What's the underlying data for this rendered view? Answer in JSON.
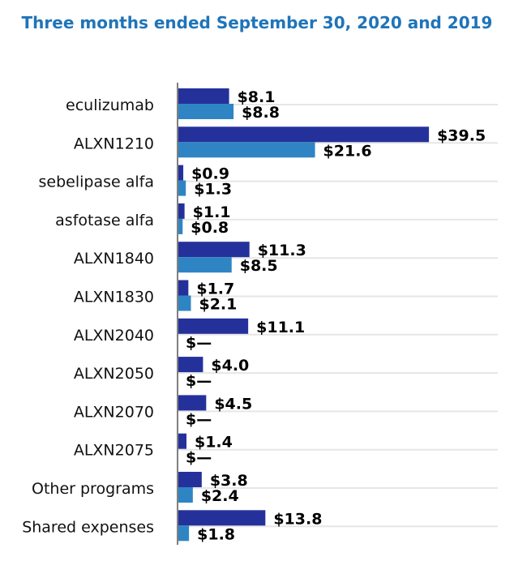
{
  "chart_data": {
    "type": "bar",
    "orientation": "horizontal",
    "title": "Three months ended September 30, 2020 and 2019",
    "xlabel": "",
    "ylabel": "",
    "xlim": [
      0,
      40
    ],
    "grid": true,
    "categories": [
      "eculizumab",
      "ALXN1210",
      "sebelipase alfa",
      "asfotase alfa",
      "ALXN1840",
      "ALXN1830",
      "ALXN2040",
      "ALXN2050",
      "ALXN2070",
      "ALXN2075",
      "Other programs",
      "Shared expenses"
    ],
    "series": [
      {
        "name": "2020",
        "color": "#25319b",
        "values": [
          8.1,
          39.5,
          0.9,
          1.1,
          11.3,
          1.7,
          11.1,
          4.0,
          4.5,
          1.4,
          3.8,
          13.8
        ],
        "labels": [
          "$8.1",
          "$39.5",
          "$0.9",
          "$1.1",
          "$11.3",
          "$1.7",
          "$11.1",
          "$4.0",
          "$4.5",
          "$1.4",
          "$3.8",
          "$13.8"
        ]
      },
      {
        "name": "2019",
        "color": "#2f85c4",
        "values": [
          8.8,
          21.6,
          1.3,
          0.8,
          8.5,
          2.1,
          0,
          0,
          0,
          0,
          2.4,
          1.8
        ],
        "labels": [
          "$8.8",
          "$21.6",
          "$1.3",
          "$0.8",
          "$8.5",
          "$2.1",
          "$—",
          "$—",
          "$—",
          "$—",
          "$2.4",
          "$1.8"
        ]
      }
    ]
  }
}
